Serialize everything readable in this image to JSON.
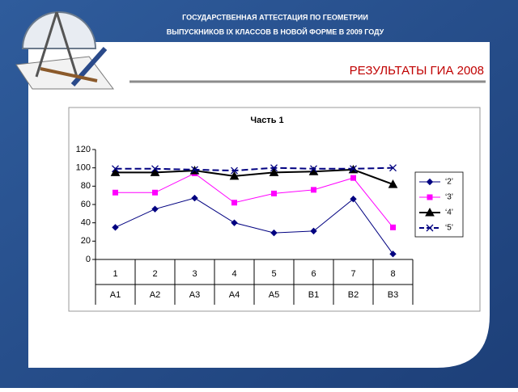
{
  "header": {
    "line1": "ГОСУДАРСТВЕННАЯ АТТЕСТАЦИЯ ПО ГЕОМЕТРИИ",
    "line2": "ВЫПУСКНИКОВ IX КЛАССОВ В НОВОЙ ФОРМЕ В 2009 ГОДУ"
  },
  "slide_title": "РЕЗУЛЬТАТЫ  ГИА 2008",
  "chart_data": {
    "type": "line",
    "title": "Часть 1",
    "categories": [
      "1",
      "2",
      "3",
      "4",
      "5",
      "6",
      "7",
      "8"
    ],
    "category_groups": [
      "А1",
      "А2",
      "А3",
      "А4",
      "А5",
      "В1",
      "В2",
      "В3"
    ],
    "series": [
      {
        "name": "‘2’",
        "color": "#000080",
        "marker": "diamond",
        "dashed": false,
        "values": [
          35,
          55,
          67,
          40,
          29,
          31,
          66,
          6
        ]
      },
      {
        "name": "‘3’",
        "color": "#ff00ff",
        "marker": "square",
        "dashed": false,
        "values": [
          73,
          73,
          94,
          62,
          72,
          76,
          89,
          35
        ]
      },
      {
        "name": "‘4’",
        "color": "#000000",
        "marker": "triangle",
        "dashed": false,
        "values": [
          95,
          95,
          97,
          91,
          95,
          96,
          98,
          82
        ]
      },
      {
        "name": "‘5’",
        "color": "#000080",
        "marker": "x",
        "dashed": true,
        "values": [
          99,
          99,
          98,
          97,
          100,
          99,
          99,
          100
        ]
      }
    ],
    "ylim": [
      0,
      120
    ],
    "yticks": [
      0,
      20,
      40,
      60,
      80,
      100,
      120
    ],
    "legend": "right"
  }
}
